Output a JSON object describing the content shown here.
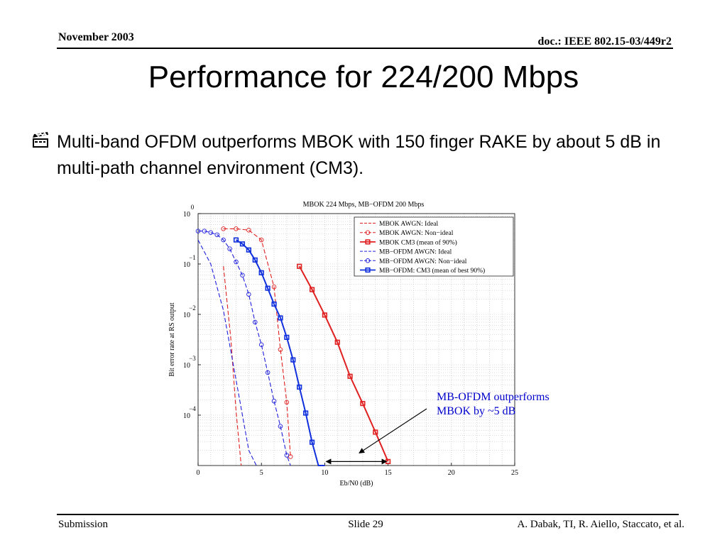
{
  "header": {
    "date": "November 2003",
    "doc": "doc.: IEEE 802.15-03/449r2"
  },
  "title": "Performance for 224/200 Mbps",
  "bullet": {
    "icon": "clapperboard-icon",
    "text": "Multi-band OFDM outperforms MBOK with 150 finger RAKE by about 5 dB in multi-path channel environment (CM3)."
  },
  "chart_data": {
    "type": "line",
    "title": "MBOK 224 Mbps, MB−OFDM 200 Mbps",
    "xlabel": "Eb/N0 (dB)",
    "ylabel": "Bit error rate at RS output",
    "xlim": [
      0,
      25
    ],
    "ylim": [
      1e-05,
      1
    ],
    "yscale": "log",
    "grid": true,
    "legend_position": "top-right",
    "x_ticks": [
      "0",
      "5",
      "10",
      "15",
      "20",
      "25"
    ],
    "y_ticks": [
      {
        "base": "10",
        "exp": "0"
      },
      {
        "base": "10",
        "exp": "−1"
      },
      {
        "base": "10",
        "exp": "−2"
      },
      {
        "base": "10",
        "exp": "−3"
      },
      {
        "base": "10",
        "exp": "−4"
      }
    ],
    "series": [
      {
        "name": "MBOK AWGN: Ideal",
        "color": "#e02020",
        "dash": "dashed",
        "marker": "none",
        "x": [
          2.0,
          2.6,
          3.0,
          3.4
        ],
        "y": [
          0.09,
          0.003,
          0.00012,
          1e-05
        ]
      },
      {
        "name": "MBOK AWGN: Non−ideal",
        "color": "#e02020",
        "dash": "dashed",
        "marker": "circle",
        "x": [
          2,
          3,
          4,
          5,
          6,
          6.5,
          7,
          7.3
        ],
        "y": [
          0.5,
          0.5,
          0.47,
          0.3,
          0.035,
          0.002,
          0.00018,
          1.5e-05
        ]
      },
      {
        "name": "MBOK CM3 (mean of 90%)",
        "color": "#e02020",
        "dash": "solid",
        "marker": "square",
        "x": [
          8,
          9,
          10,
          11,
          12,
          13,
          14,
          15
        ],
        "y": [
          0.09,
          0.031,
          0.0097,
          0.0028,
          0.00059,
          0.00017,
          4.6e-05,
          1.2e-05
        ]
      },
      {
        "name": "MB−OFDM AWGN: Ideal",
        "color": "#2020dd",
        "dash": "dashed",
        "marker": "none",
        "x": [
          0,
          1,
          2,
          3,
          4,
          4.6
        ],
        "y": [
          0.3,
          0.1,
          0.012,
          0.0005,
          2e-05,
          5e-06
        ]
      },
      {
        "name": "MB−OFDM AWGN: Non−ideal",
        "color": "#2020dd",
        "dash": "dashed",
        "marker": "circle",
        "x": [
          0,
          0.5,
          1,
          1.5,
          2,
          2.5,
          3,
          3.5,
          4,
          4.5,
          5,
          5.5,
          6,
          6.5,
          7,
          7.3
        ],
        "y": [
          0.45,
          0.45,
          0.42,
          0.38,
          0.3,
          0.2,
          0.11,
          0.06,
          0.025,
          0.007,
          0.0025,
          0.0007,
          0.00019,
          6e-05,
          1.6e-05,
          5e-06
        ]
      },
      {
        "name": "MB−OFDM: CM3 (mean of best 90%)",
        "color": "#1030dd",
        "dash": "solid",
        "marker": "square",
        "x": [
          3,
          3.5,
          4,
          4.5,
          5,
          5.5,
          6,
          6.5,
          7,
          7.5,
          8,
          8.5,
          9,
          9.5,
          10
        ],
        "y": [
          0.3,
          0.25,
          0.19,
          0.12,
          0.067,
          0.033,
          0.016,
          0.0085,
          0.0035,
          0.00125,
          0.00036,
          0.00011,
          2.9e-05,
          8.5e-06,
          1.2e-06
        ]
      }
    ],
    "annotation": {
      "lines": [
        "MB-OFDM outperforms",
        "MBOK by ~5 dB"
      ],
      "color": "#0000cc",
      "span_dB": [
        10,
        15
      ],
      "span_ber": 1.2e-05
    }
  },
  "footer": {
    "left": "Submission",
    "center": "Slide 29",
    "right": "A. Dabak, TI, R. Aiello, Staccato, et al."
  }
}
